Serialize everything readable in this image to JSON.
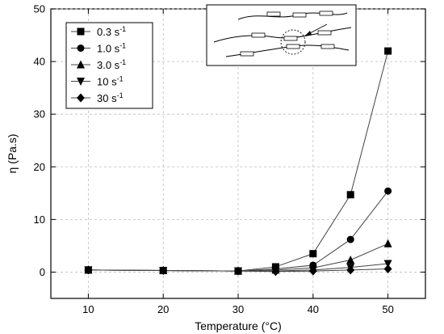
{
  "chart_data": {
    "type": "line",
    "title": "",
    "xlabel": "Temperature (°C)",
    "ylabel": "η (Pa.s)",
    "xlim": [
      5,
      55
    ],
    "ylim": [
      -5,
      50
    ],
    "xticks": [
      10,
      20,
      30,
      40,
      50
    ],
    "yticks": [
      0,
      10,
      20,
      30,
      40,
      50
    ],
    "x": [
      10,
      20,
      30,
      35,
      40,
      45,
      50
    ],
    "grid": true,
    "legend_position": "top-left",
    "series": [
      {
        "name": "0.3 s-1",
        "rate": "0.3",
        "marker": "square",
        "values": [
          0.4,
          0.3,
          0.2,
          1.0,
          3.5,
          14.7,
          42.0
        ]
      },
      {
        "name": "1.0 s-1",
        "rate": "1.0",
        "marker": "circle",
        "values": [
          0.4,
          0.3,
          0.2,
          0.6,
          1.3,
          6.2,
          15.4
        ]
      },
      {
        "name": "3.0 s-1",
        "rate": "3.0",
        "marker": "triangle-up",
        "values": [
          0.4,
          0.3,
          0.2,
          0.4,
          0.8,
          2.3,
          5.4
        ]
      },
      {
        "name": "10 s-1",
        "rate": "10",
        "marker": "triangle-down",
        "values": [
          0.4,
          0.3,
          0.2,
          0.2,
          0.4,
          0.9,
          1.6
        ]
      },
      {
        "name": "30 s-1",
        "rate": "30",
        "marker": "diamond",
        "values": [
          0.4,
          0.3,
          0.2,
          0.1,
          0.2,
          0.4,
          0.6
        ]
      }
    ],
    "inset": {
      "description": "polymer chain association schematic"
    }
  }
}
